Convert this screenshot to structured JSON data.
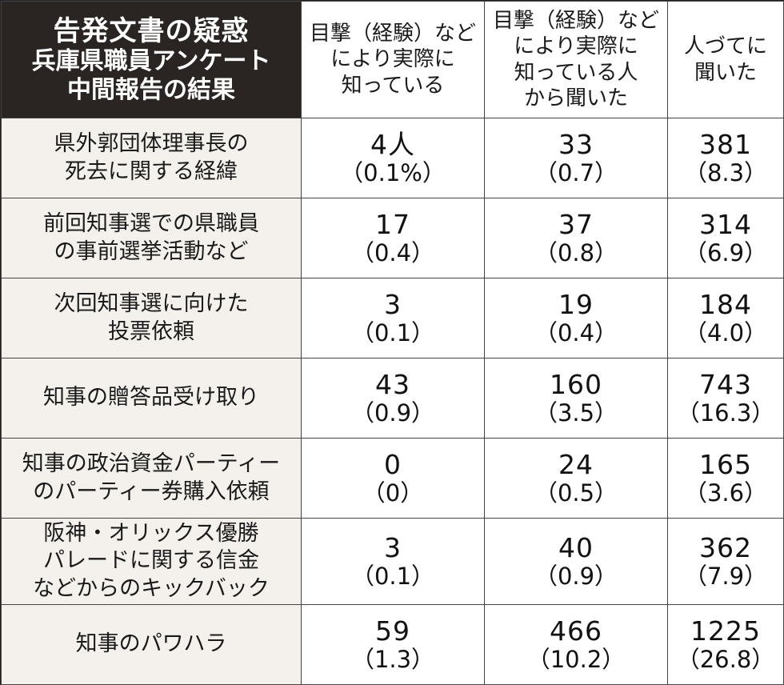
{
  "title": {
    "line1": "告発文書の疑惑",
    "line2": "兵庫県職員アンケート",
    "line3": "中間報告の結果"
  },
  "columns": [
    {
      "lines": [
        "目撃（経験）など",
        "により実際に",
        "知っている"
      ]
    },
    {
      "lines": [
        "目撃（経験）など",
        "により実際に",
        "知っている人",
        "から聞いた"
      ]
    },
    {
      "lines": [
        "人づてに",
        "聞いた"
      ]
    }
  ],
  "rows": [
    {
      "label": [
        "県外郭団体理事長の",
        "死去に関する経緯"
      ],
      "values": [
        {
          "count": "4人",
          "pct": "（0.1%）"
        },
        {
          "count": "33",
          "pct": "（0.7）"
        },
        {
          "count": "381",
          "pct": "（8.3）"
        }
      ]
    },
    {
      "label": [
        "前回知事選での県職員",
        "の事前選挙活動など"
      ],
      "values": [
        {
          "count": "17",
          "pct": "（0.4）"
        },
        {
          "count": "37",
          "pct": "（0.8）"
        },
        {
          "count": "314",
          "pct": "（6.9）"
        }
      ]
    },
    {
      "label": [
        "次回知事選に向けた",
        "投票依頼"
      ],
      "values": [
        {
          "count": "3",
          "pct": "（0.1）"
        },
        {
          "count": "19",
          "pct": "（0.4）"
        },
        {
          "count": "184",
          "pct": "（4.0）"
        }
      ]
    },
    {
      "label": [
        "知事の贈答品受け取り"
      ],
      "values": [
        {
          "count": "43",
          "pct": "（0.9）"
        },
        {
          "count": "160",
          "pct": "（3.5）"
        },
        {
          "count": "743",
          "pct": "（16.3）"
        }
      ]
    },
    {
      "label": [
        "知事の政治資金パーティー",
        "のパーティー券購入依頼"
      ],
      "values": [
        {
          "count": "0",
          "pct": "（0）"
        },
        {
          "count": "24",
          "pct": "（0.5）"
        },
        {
          "count": "165",
          "pct": "（3.6）"
        }
      ]
    },
    {
      "label": [
        "阪神・オリックス優勝",
        "パレードに関する信金",
        "などからのキックバック"
      ],
      "values": [
        {
          "count": "3",
          "pct": "（0.1）"
        },
        {
          "count": "40",
          "pct": "（0.9）"
        },
        {
          "count": "362",
          "pct": "（7.9）"
        }
      ]
    },
    {
      "label": [
        "知事のパワハラ"
      ],
      "values": [
        {
          "count": "59",
          "pct": "（1.3）"
        },
        {
          "count": "466",
          "pct": "（10.2）"
        },
        {
          "count": "1225",
          "pct": "（26.8）"
        }
      ]
    }
  ]
}
